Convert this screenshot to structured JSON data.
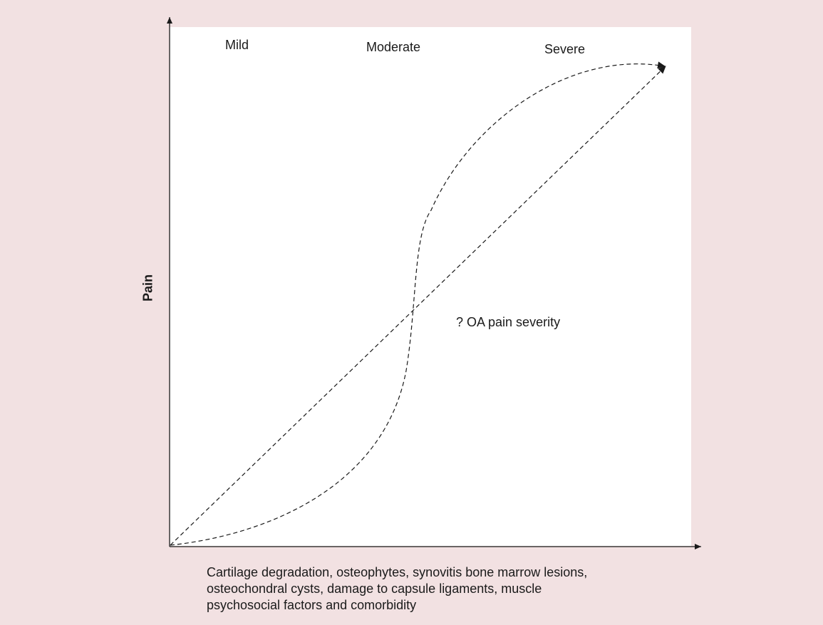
{
  "diagram": {
    "stages": {
      "mild": "Mild",
      "moderate": "Moderate",
      "severe": "Severe"
    },
    "annotation": "? OA pain severity",
    "y_axis_label": "Pain",
    "x_axis_label_lines": [
      "Cartilage degradation, osteophytes, synovitis bone marrow lesions,",
      "osteochondral cysts, damage to capsule ligaments, muscle",
      "psychosocial factors and comorbidity"
    ],
    "colors": {
      "background": "#f2e1e2",
      "panel": "#ffffff",
      "ink": "#1a1a1a"
    },
    "line_style": "dashed"
  }
}
